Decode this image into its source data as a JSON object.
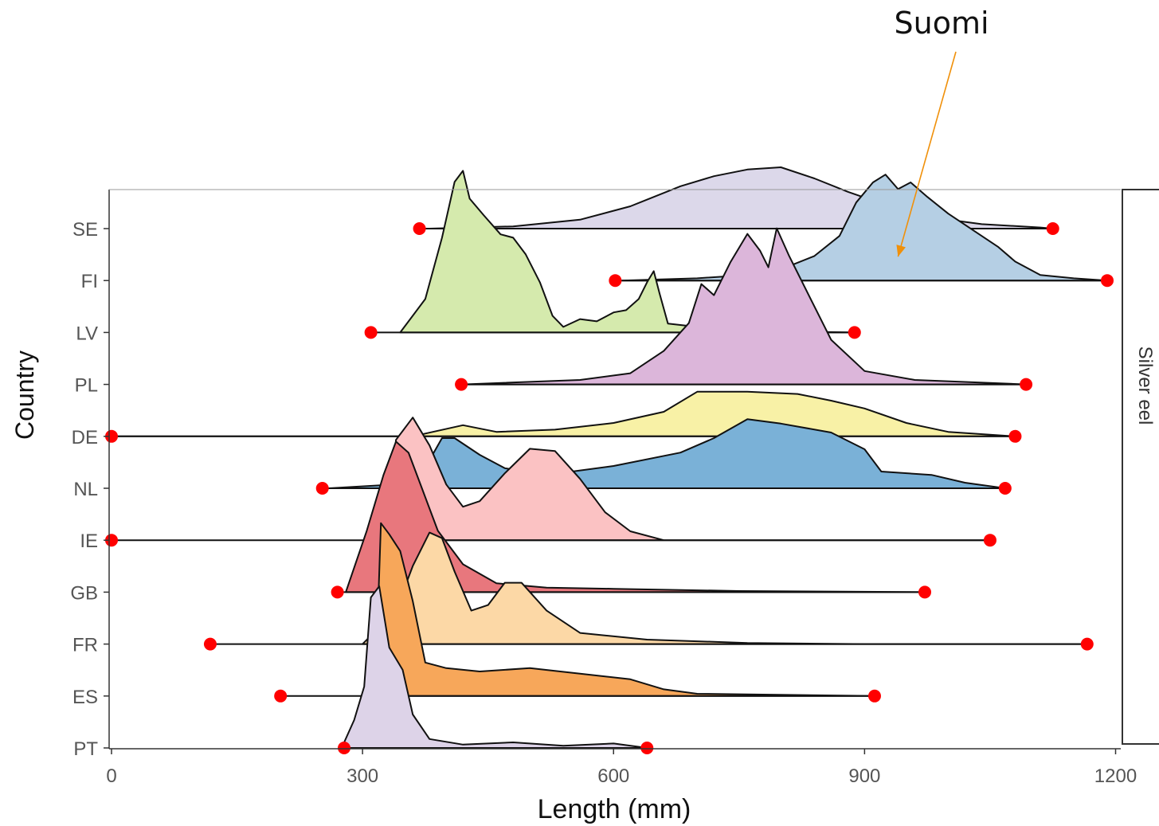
{
  "chart_data": {
    "type": "ridgeline",
    "xlabel": "Length (mm)",
    "ylabel": "Country",
    "xlim": [
      0,
      1210
    ],
    "xticks": [
      0,
      300,
      600,
      900,
      1200
    ],
    "facet_label": "Silver eel",
    "annotation": {
      "text": "Suomi",
      "target_country": "FI",
      "target_length": 940,
      "color": "#f0900a"
    },
    "range_color": "#ff0000",
    "series": [
      {
        "name": "SE",
        "color": "#dcd8ea",
        "min": 368,
        "max": 1125,
        "density": [
          [
            380,
            0
          ],
          [
            480,
            0.02
          ],
          [
            560,
            0.08
          ],
          [
            620,
            0.2
          ],
          [
            680,
            0.38
          ],
          [
            720,
            0.47
          ],
          [
            760,
            0.53
          ],
          [
            800,
            0.55
          ],
          [
            840,
            0.45
          ],
          [
            880,
            0.33
          ],
          [
            930,
            0.2
          ],
          [
            980,
            0.1
          ],
          [
            1040,
            0.04
          ],
          [
            1110,
            0.01
          ],
          [
            1125,
            0
          ]
        ]
      },
      {
        "name": "FI",
        "color": "#b5cfe4",
        "min": 602,
        "max": 1190,
        "density": [
          [
            610,
            0
          ],
          [
            700,
            0.02
          ],
          [
            760,
            0.05
          ],
          [
            800,
            0.1
          ],
          [
            840,
            0.22
          ],
          [
            870,
            0.4
          ],
          [
            890,
            0.7
          ],
          [
            910,
            0.88
          ],
          [
            925,
            0.95
          ],
          [
            940,
            0.82
          ],
          [
            955,
            0.88
          ],
          [
            975,
            0.75
          ],
          [
            1000,
            0.6
          ],
          [
            1030,
            0.45
          ],
          [
            1060,
            0.3
          ],
          [
            1080,
            0.17
          ],
          [
            1110,
            0.05
          ],
          [
            1150,
            0.02
          ],
          [
            1190,
            0
          ]
        ]
      },
      {
        "name": "LV",
        "color": "#d5eaad",
        "min": 310,
        "max": 888,
        "density": [
          [
            345,
            0
          ],
          [
            375,
            0.3
          ],
          [
            395,
            0.85
          ],
          [
            410,
            1.35
          ],
          [
            420,
            1.45
          ],
          [
            428,
            1.2
          ],
          [
            445,
            1.05
          ],
          [
            465,
            0.88
          ],
          [
            480,
            0.85
          ],
          [
            495,
            0.7
          ],
          [
            512,
            0.45
          ],
          [
            527,
            0.15
          ],
          [
            540,
            0.05
          ],
          [
            560,
            0.12
          ],
          [
            580,
            0.1
          ],
          [
            600,
            0.18
          ],
          [
            615,
            0.2
          ],
          [
            630,
            0.3
          ],
          [
            640,
            0.45
          ],
          [
            648,
            0.55
          ],
          [
            655,
            0.35
          ],
          [
            665,
            0.08
          ],
          [
            700,
            0.05
          ],
          [
            740,
            0.02
          ],
          [
            800,
            0.01
          ],
          [
            888,
            0
          ]
        ]
      },
      {
        "name": "PL",
        "color": "#dcb6da",
        "min": 418,
        "max": 1093,
        "density": [
          [
            420,
            0
          ],
          [
            560,
            0.04
          ],
          [
            620,
            0.1
          ],
          [
            660,
            0.3
          ],
          [
            690,
            0.55
          ],
          [
            705,
            0.9
          ],
          [
            720,
            0.8
          ],
          [
            740,
            1.1
          ],
          [
            760,
            1.35
          ],
          [
            775,
            1.2
          ],
          [
            785,
            1.05
          ],
          [
            795,
            1.4
          ],
          [
            810,
            1.15
          ],
          [
            830,
            0.85
          ],
          [
            860,
            0.4
          ],
          [
            900,
            0.12
          ],
          [
            960,
            0.04
          ],
          [
            1093,
            0
          ]
        ]
      },
      {
        "name": "DE",
        "color": "#f8f1a6",
        "min": 0,
        "max": 1080,
        "density": [
          [
            0,
            0
          ],
          [
            360,
            0
          ],
          [
            420,
            0.1
          ],
          [
            460,
            0.04
          ],
          [
            530,
            0.06
          ],
          [
            600,
            0.12
          ],
          [
            660,
            0.22
          ],
          [
            700,
            0.4
          ],
          [
            760,
            0.4
          ],
          [
            820,
            0.38
          ],
          [
            860,
            0.32
          ],
          [
            900,
            0.25
          ],
          [
            950,
            0.12
          ],
          [
            1000,
            0.04
          ],
          [
            1080,
            0
          ]
        ]
      },
      {
        "name": "NL",
        "color": "#7ab1d7",
        "min": 252,
        "max": 1068,
        "density": [
          [
            260,
            0
          ],
          [
            330,
            0.03
          ],
          [
            370,
            0.12
          ],
          [
            395,
            0.45
          ],
          [
            410,
            0.45
          ],
          [
            440,
            0.3
          ],
          [
            470,
            0.18
          ],
          [
            520,
            0.12
          ],
          [
            600,
            0.2
          ],
          [
            680,
            0.32
          ],
          [
            720,
            0.45
          ],
          [
            760,
            0.62
          ],
          [
            800,
            0.58
          ],
          [
            860,
            0.5
          ],
          [
            900,
            0.35
          ],
          [
            920,
            0.15
          ],
          [
            980,
            0.12
          ],
          [
            1020,
            0.05
          ],
          [
            1068,
            0
          ]
        ]
      },
      {
        "name": "IE",
        "color": "#fbc2c3",
        "min": 0,
        "max": 1050,
        "density": [
          [
            330,
            0
          ],
          [
            340,
            0.9
          ],
          [
            360,
            1.1
          ],
          [
            380,
            0.85
          ],
          [
            400,
            0.5
          ],
          [
            420,
            0.3
          ],
          [
            440,
            0.35
          ],
          [
            470,
            0.6
          ],
          [
            500,
            0.82
          ],
          [
            530,
            0.8
          ],
          [
            560,
            0.55
          ],
          [
            590,
            0.25
          ],
          [
            620,
            0.08
          ],
          [
            660,
            0
          ],
          [
            1050,
            0
          ]
        ]
      },
      {
        "name": "GB",
        "color": "#e8777d",
        "min": 270,
        "max": 972,
        "density": [
          [
            280,
            0
          ],
          [
            305,
            0.55
          ],
          [
            325,
            1.05
          ],
          [
            340,
            1.35
          ],
          [
            355,
            1.25
          ],
          [
            370,
            0.95
          ],
          [
            390,
            0.55
          ],
          [
            420,
            0.25
          ],
          [
            460,
            0.08
          ],
          [
            520,
            0.04
          ],
          [
            600,
            0.03
          ],
          [
            750,
            0.01
          ],
          [
            972,
            0
          ]
        ]
      },
      {
        "name": "FR",
        "color": "#fcd8a6",
        "min": 118,
        "max": 1166,
        "density": [
          [
            300,
            0
          ],
          [
            340,
            0.3
          ],
          [
            360,
            0.7
          ],
          [
            380,
            1
          ],
          [
            395,
            0.95
          ],
          [
            410,
            0.65
          ],
          [
            430,
            0.3
          ],
          [
            450,
            0.35
          ],
          [
            470,
            0.55
          ],
          [
            490,
            0.55
          ],
          [
            520,
            0.3
          ],
          [
            560,
            0.1
          ],
          [
            640,
            0.04
          ],
          [
            760,
            0.01
          ],
          [
            900,
            0
          ],
          [
            1166,
            0
          ]
        ]
      },
      {
        "name": "ES",
        "color": "#f7a75a",
        "min": 202,
        "max": 912,
        "density": [
          [
            315,
            0
          ],
          [
            322,
            1.55
          ],
          [
            332,
            1.45
          ],
          [
            345,
            1.3
          ],
          [
            360,
            0.85
          ],
          [
            375,
            0.3
          ],
          [
            400,
            0.25
          ],
          [
            440,
            0.22
          ],
          [
            500,
            0.25
          ],
          [
            560,
            0.2
          ],
          [
            620,
            0.15
          ],
          [
            660,
            0.06
          ],
          [
            700,
            0.02
          ],
          [
            912,
            0
          ]
        ]
      },
      {
        "name": "PT",
        "color": "#ddd3e8",
        "min": 278,
        "max": 640,
        "density": [
          [
            275,
            0
          ],
          [
            290,
            0.25
          ],
          [
            302,
            0.55
          ],
          [
            310,
            1.35
          ],
          [
            320,
            1.45
          ],
          [
            332,
            0.9
          ],
          [
            348,
            0.7
          ],
          [
            360,
            0.3
          ],
          [
            380,
            0.08
          ],
          [
            420,
            0.03
          ],
          [
            480,
            0.05
          ],
          [
            540,
            0.02
          ],
          [
            600,
            0.04
          ],
          [
            640,
            0
          ]
        ]
      }
    ]
  }
}
